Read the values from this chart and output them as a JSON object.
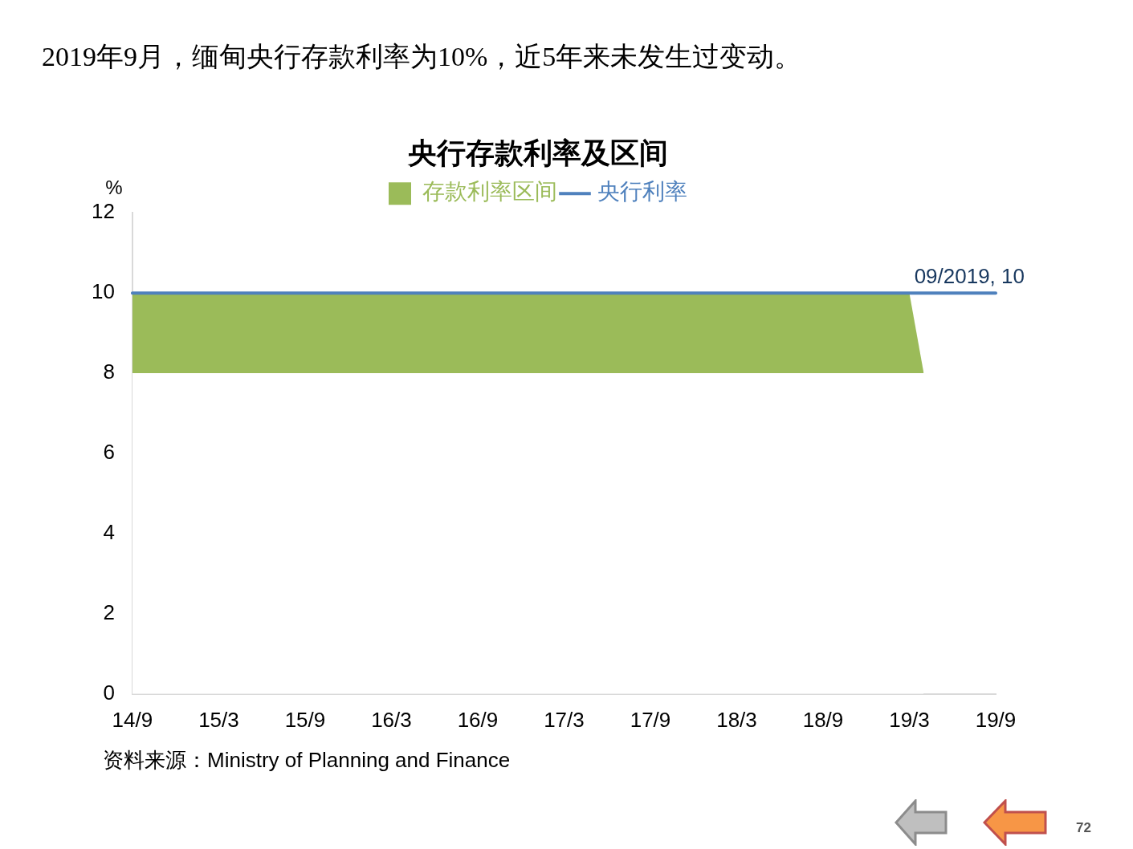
{
  "chart_data": {
    "type": "line",
    "title": "央行存款利率及区间",
    "ylabel": "%",
    "stacked": true,
    "categories": [
      "14/9",
      null,
      null,
      null,
      null,
      null,
      "15/3",
      null,
      null,
      null,
      null,
      null,
      "15/9",
      null,
      null,
      null,
      null,
      null,
      "16/3",
      null,
      null,
      null,
      null,
      null,
      "16/9",
      null,
      null,
      null,
      null,
      null,
      "17/3",
      null,
      null,
      null,
      null,
      null,
      "17/9",
      null,
      null,
      null,
      null,
      null,
      "18/3",
      null,
      null,
      null,
      null,
      null,
      "18/9",
      null,
      null,
      null,
      null,
      null,
      "19/3",
      null,
      null,
      null,
      null,
      null,
      "19/9"
    ],
    "series": [
      {
        "type": "area",
        "color": "#ffffff",
        "values": [
          8,
          8,
          8,
          8,
          8,
          8,
          8,
          8,
          8,
          8,
          8,
          8,
          8,
          8,
          8,
          8,
          8,
          8,
          8,
          8,
          8,
          8,
          8,
          8,
          8,
          8,
          8,
          8,
          8,
          8,
          8,
          8,
          8,
          8,
          8,
          8,
          8,
          8,
          8,
          8,
          8,
          8,
          8,
          8,
          8,
          8,
          8,
          8,
          8,
          8,
          8,
          8,
          8,
          8,
          8,
          8,
          null,
          null,
          null,
          null,
          null
        ]
      },
      {
        "name": "存款利率区间",
        "type": "area",
        "color": "#9bbb59",
        "values": [
          2,
          2,
          2,
          2,
          2,
          2,
          2,
          2,
          2,
          2,
          2,
          2,
          2,
          2,
          2,
          2,
          2,
          2,
          2,
          2,
          2,
          2,
          2,
          2,
          2,
          2,
          2,
          2,
          2,
          2,
          2,
          2,
          2,
          2,
          2,
          2,
          2,
          2,
          2,
          2,
          2,
          2,
          2,
          2,
          2,
          2,
          2,
          2,
          2,
          2,
          2,
          2,
          2,
          2,
          2,
          0,
          null,
          null,
          null,
          null,
          null
        ]
      },
      {
        "name": "央行利率",
        "type": "line",
        "color": "#4f81bd",
        "values": [
          10,
          10,
          10,
          10,
          10,
          10,
          10,
          10,
          10,
          10,
          10,
          10,
          10,
          10,
          10,
          10,
          10,
          10,
          10,
          10,
          10,
          10,
          10,
          10,
          10,
          10,
          10,
          10,
          10,
          10,
          10,
          10,
          10,
          10,
          10,
          10,
          10,
          10,
          10,
          10,
          10,
          10,
          10,
          10,
          10,
          10,
          10,
          10,
          10,
          10,
          10,
          10,
          10,
          10,
          10,
          10,
          10,
          10,
          10,
          10,
          10
        ]
      }
    ],
    "ylim": [
      0,
      12
    ],
    "yticks": [
      0,
      2,
      4,
      6,
      8,
      10,
      12
    ],
    "grid": false,
    "legend": "top",
    "marker": "none",
    "annotations": [
      "2019年9月，缅甸央行存款利率为10%，近5年来未发生过变动。",
      "资料来源：Ministry of Planning and Finance",
      "72",
      {
        "text": "09/2019, 10",
        "x": "19/9",
        "y": 10
      }
    ]
  }
}
